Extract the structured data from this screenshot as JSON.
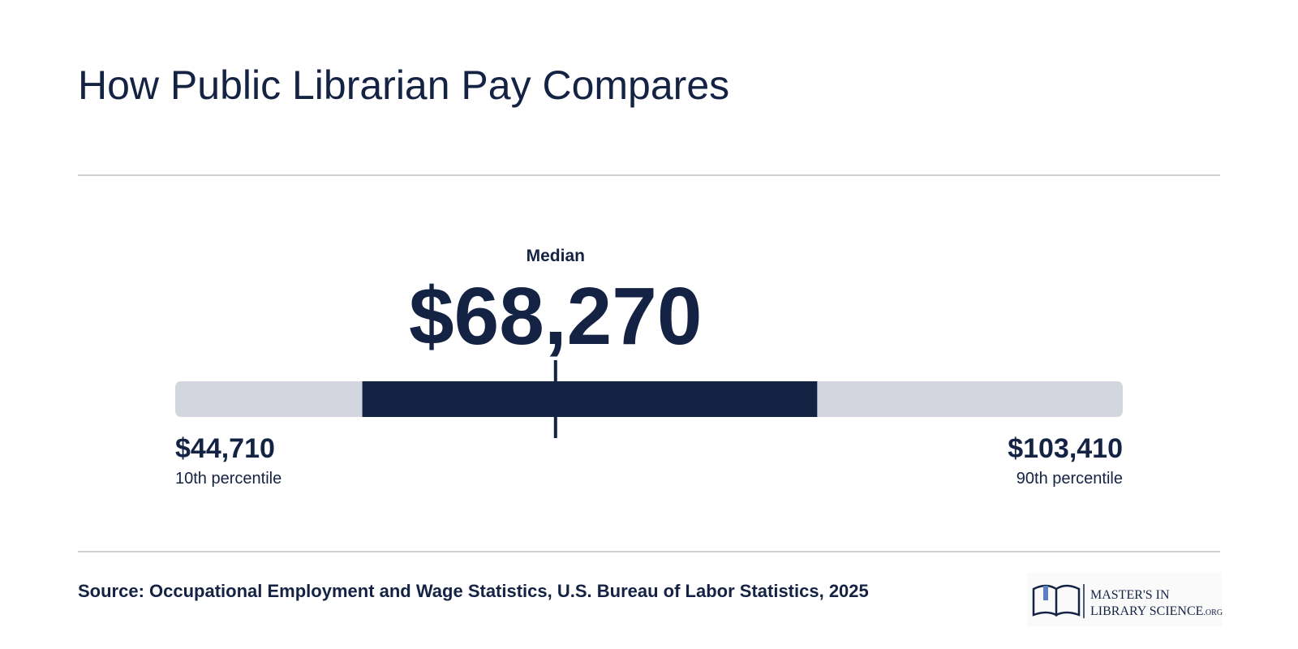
{
  "chart_data": {
    "type": "range",
    "title": "How Public Librarian Pay Compares",
    "values": [
      44710,
      68270,
      103410
    ],
    "value_labels": [
      "$44,710",
      "$68,270",
      "$103,410"
    ],
    "labels": [
      "10th percentile",
      "Median",
      "90th percentile"
    ],
    "band": [
      56300,
      84480
    ],
    "track_color": "#d3d6de",
    "band_color": "#142244",
    "source": "Source: Occupational Employment and Wage Statistics, U.S. Bureau of Labor Statistics, 2025"
  },
  "logo": {
    "line1": "MASTER'S IN",
    "line2": "LIBRARY SCIENCE",
    "suffix": ".ORG"
  }
}
